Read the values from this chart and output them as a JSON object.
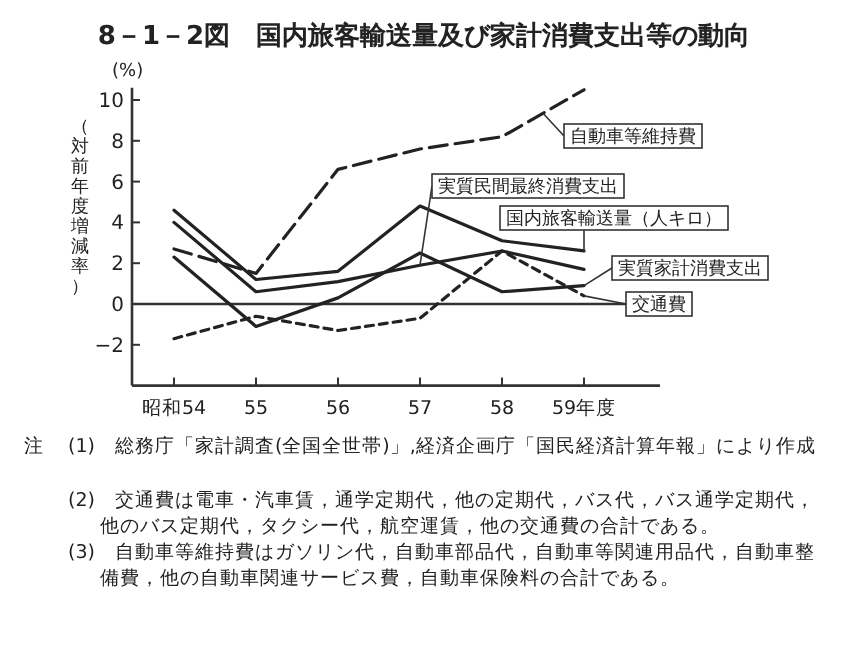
{
  "chart_data": {
    "type": "line",
    "title": "8－1－2図　国内旅客輸送量及び家計消費支出等の動向",
    "ylabel": "（対前年度増減率）",
    "categories": [
      "昭和54",
      "55",
      "56",
      "57",
      "58",
      "59年度"
    ],
    "ylim": [
      -4,
      10.6
    ],
    "yticks": [
      {
        "value": -2,
        "label": "−2"
      },
      0,
      2,
      4,
      6,
      8,
      10
    ],
    "ref_lines": [
      {
        "axis": "y",
        "value": 0,
        "color": "#333333"
      }
    ],
    "series": [
      {
        "name": "自動車等維持費",
        "color": "#222222",
        "line_style": "dashed",
        "values": [
          2.7,
          1.5,
          6.6,
          7.6,
          8.2,
          10.5
        ]
      },
      {
        "name": "実質民間最終消費支出",
        "color": "#222222",
        "line_style": "solid",
        "values": [
          4.0,
          0.6,
          1.1,
          1.9,
          2.6,
          1.7
        ]
      },
      {
        "name": "国内旅客輸送量（人キロ）",
        "color": "#222222",
        "line_style": "solid",
        "values": [
          4.6,
          1.2,
          1.6,
          4.8,
          3.1,
          2.6
        ]
      },
      {
        "name": "実質家計消費支出",
        "color": "#222222",
        "line_style": "solid",
        "values": [
          2.3,
          -1.1,
          0.3,
          2.5,
          0.6,
          0.9
        ]
      },
      {
        "name": "交通費",
        "color": "#222222",
        "line_style": "dotted",
        "values": [
          -1.7,
          -0.6,
          -1.3,
          -0.7,
          2.6,
          0.4
        ]
      }
    ],
    "annotations": [
      "(%)",
      "注",
      "(1)　総務庁「家計調査(全国全世帯)」,経済企画庁「国民経済計算年報」により作成",
      "(2)　交通費は電車・汽車賃，通学定期代，他の定期代，バス代，バス通学定期代，他のバス定期代，タクシー代，航空運賃，他の交通費の合計である。",
      "(3)　自動車等維持費はガソリン代，自動車部品代，自動車等関連用品代，自動車整備費，他の自動車関連サービス費，自動車保険料の合計である。"
    ]
  }
}
